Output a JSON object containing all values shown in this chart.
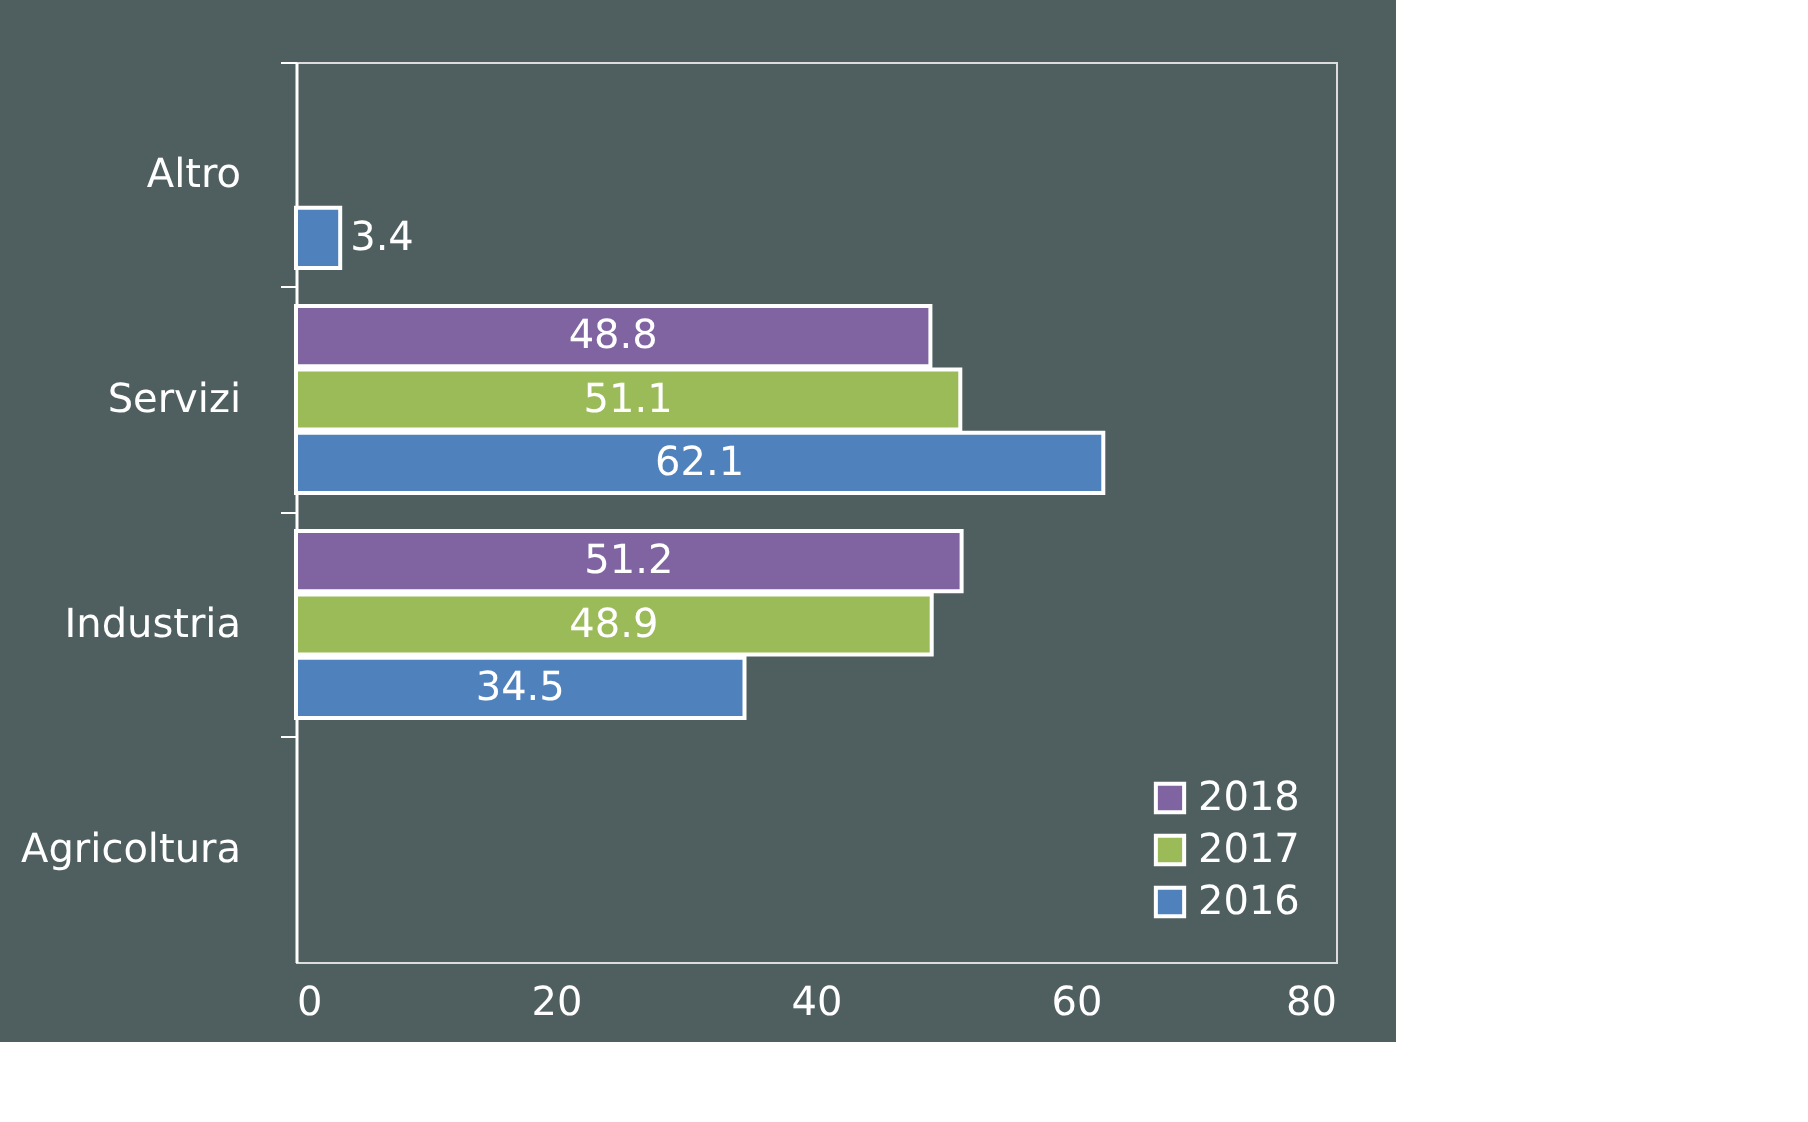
{
  "chart_data": {
    "type": "bar",
    "orientation": "horizontal",
    "categories": [
      "Altro",
      "Servizi",
      "Industria",
      "Agricoltura"
    ],
    "series": [
      {
        "name": "2018",
        "color": "#8064a2",
        "values": [
          null,
          48.8,
          51.2,
          null
        ]
      },
      {
        "name": "2017",
        "color": "#9bbb59",
        "values": [
          null,
          51.1,
          48.9,
          null
        ]
      },
      {
        "name": "2016",
        "color": "#4f81bd",
        "values": [
          3.4,
          62.1,
          34.5,
          null
        ]
      }
    ],
    "xlim": [
      0,
      80
    ],
    "xticks": [
      0,
      20,
      40,
      60,
      80
    ],
    "grid": false,
    "legend": "bottom right",
    "data_labels": true
  }
}
